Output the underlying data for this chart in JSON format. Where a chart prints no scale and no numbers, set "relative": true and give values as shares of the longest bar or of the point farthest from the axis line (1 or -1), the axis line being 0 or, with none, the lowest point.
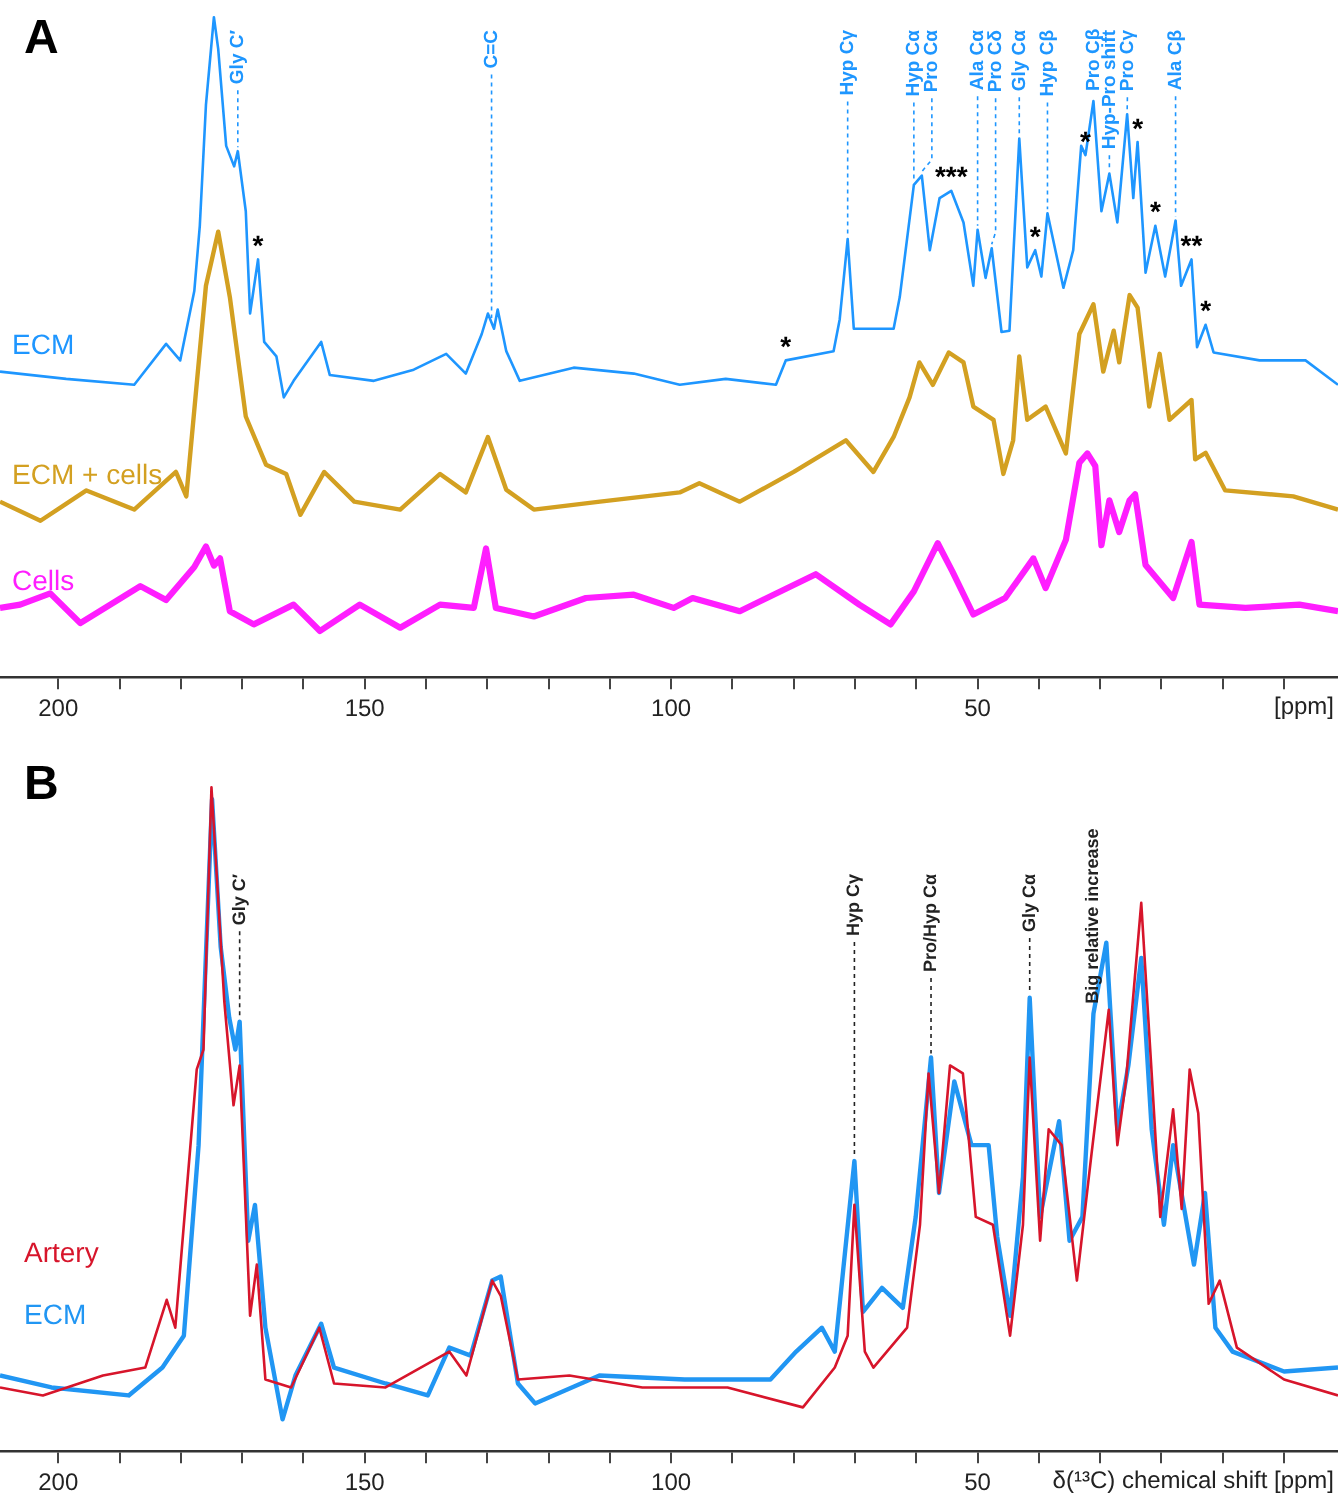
{
  "chart_data": [
    {
      "type": "line",
      "title": "A",
      "xlabel": "[ppm]",
      "relative": true,
      "marker": "none",
      "xlim": [
        209.5,
        -8.8
      ],
      "xticks": [
        200,
        {
          "value": 190,
          "label": null
        },
        {
          "value": 180,
          "label": null
        },
        {
          "value": 170,
          "label": null
        },
        {
          "value": 160,
          "label": null
        },
        150,
        {
          "value": 140,
          "label": null
        },
        {
          "value": 130,
          "label": null
        },
        {
          "value": 120,
          "label": null
        },
        {
          "value": 110,
          "label": null
        },
        100,
        {
          "value": 90,
          "label": null
        },
        {
          "value": 80,
          "label": null
        },
        {
          "value": 70,
          "label": null
        },
        {
          "value": 60,
          "label": null
        },
        50,
        {
          "value": 40,
          "label": null
        },
        {
          "value": 30,
          "label": null
        },
        {
          "value": 20,
          "label": null
        },
        {
          "value": 10,
          "label": null
        },
        {
          "value": 0,
          "label": null
        }
      ],
      "series": [
        {
          "name": "ECM",
          "color": "#1e96ff",
          "x": [
            209.5,
            198.7,
            187.6,
            182.4,
            180.1,
            177.8,
            176.9,
            175.9,
            174.6,
            173.9,
            172.6,
            171.3,
            170.7,
            169.4,
            168.7,
            167.4,
            166.4,
            164.4,
            163.2,
            161.6,
            157.1,
            155.7,
            148.5,
            142,
            136.7,
            133.5,
            130.9,
            129.9,
            128.9,
            128.3,
            126.9,
            124.7,
            115.9,
            106.1,
            98.6,
            91.1,
            82.9,
            81.3,
            73.5,
            72.5,
            71.2,
            70.2,
            63.7,
            62.7,
            60.4,
            59.1,
            57.8,
            56.2,
            54.3,
            52.3,
            50.7,
            50,
            48.7,
            47.7,
            46.1,
            44.8,
            43.2,
            41.9,
            40.6,
            39.6,
            38.6,
            36,
            34.4,
            33.1,
            32.4,
            31.1,
            29.8,
            28.5,
            27.2,
            25.6,
            24.6,
            23.9,
            22.6,
            21,
            19.4,
            17.7,
            16.8,
            15.1,
            14.2,
            12.8,
            11.5,
            4,
            -3.5,
            -8.8
          ],
          "values": [
            0.463,
            0.452,
            0.443,
            0.505,
            0.48,
            0.585,
            0.684,
            0.867,
            1,
            0.952,
            0.805,
            0.774,
            0.797,
            0.706,
            0.551,
            0.633,
            0.508,
            0.486,
            0.424,
            0.449,
            0.508,
            0.458,
            0.449,
            0.466,
            0.49,
            0.46,
            0.52,
            0.551,
            0.528,
            0.557,
            0.494,
            0.449,
            0.469,
            0.46,
            0.443,
            0.452,
            0.443,
            0.48,
            0.494,
            0.542,
            0.664,
            0.528,
            0.528,
            0.576,
            0.746,
            0.76,
            0.647,
            0.726,
            0.737,
            0.689,
            0.593,
            0.678,
            0.605,
            0.65,
            0.523,
            0.525,
            0.816,
            0.621,
            0.647,
            0.607,
            0.703,
            0.59,
            0.647,
            0.805,
            0.791,
            0.873,
            0.706,
            0.763,
            0.689,
            0.853,
            0.726,
            0.811,
            0.613,
            0.684,
            0.607,
            0.692,
            0.593,
            0.633,
            0.5,
            0.534,
            0.492,
            0.48,
            0.48,
            0.443
          ]
        },
        {
          "name": "ECM + cells",
          "color": "#d3a021",
          "x": [
            209.5,
            202.9,
            195.4,
            187.6,
            180.8,
            179.1,
            177.5,
            175.9,
            173.9,
            172,
            169.4,
            166.1,
            162.8,
            160.5,
            156.6,
            151.7,
            144.2,
            137.7,
            133.5,
            129.9,
            126.9,
            122.4,
            111.6,
            98.6,
            95.4,
            88.8,
            80,
            71.5,
            67,
            63.7,
            61.1,
            59.5,
            57.3,
            54.7,
            52.3,
            50.7,
            47.4,
            45.8,
            44.2,
            43.2,
            41.9,
            38.9,
            35.6,
            33.4,
            31.1,
            29.5,
            27.8,
            26.9,
            25.2,
            23.9,
            22,
            20.3,
            18.7,
            15.1,
            14.5,
            12.8,
            9.6,
            -1.5,
            -8.8
          ],
          "values": [
            0.266,
            0.237,
            0.283,
            0.254,
            0.311,
            0.274,
            0.435,
            0.593,
            0.675,
            0.576,
            0.395,
            0.322,
            0.308,
            0.246,
            0.311,
            0.266,
            0.254,
            0.308,
            0.28,
            0.364,
            0.284,
            0.254,
            0.266,
            0.28,
            0.294,
            0.266,
            0.311,
            0.359,
            0.311,
            0.364,
            0.424,
            0.477,
            0.443,
            0.492,
            0.477,
            0.41,
            0.39,
            0.308,
            0.359,
            0.486,
            0.39,
            0.41,
            0.339,
            0.52,
            0.565,
            0.463,
            0.525,
            0.477,
            0.579,
            0.56,
            0.41,
            0.49,
            0.39,
            0.42,
            0.33,
            0.34,
            0.283,
            0.274,
            0.254
          ]
        },
        {
          "name": "Cells",
          "color": "#ff1eff",
          "x": [
            209.5,
            206.2,
            201.3,
            196.4,
            186.6,
            182.4,
            177.8,
            175.9,
            174.6,
            173.6,
            172,
            168.1,
            161.6,
            157.3,
            150.8,
            144.2,
            137.7,
            132.2,
            130.2,
            128.6,
            122.4,
            113.9,
            106.1,
            99.6,
            96.5,
            88.8,
            76.4,
            69.3,
            64.2,
            60.4,
            56.5,
            54.1,
            50.7,
            45.5,
            40.9,
            38.9,
            35.6,
            33.4,
            32.1,
            30.8,
            29.8,
            28.5,
            26.9,
            25.2,
            24.3,
            22.6,
            18.1,
            15.1,
            13.8,
            6.3,
            -2.5,
            -8.8
          ],
          "values": [
            0.105,
            0.11,
            0.127,
            0.082,
            0.138,
            0.117,
            0.167,
            0.198,
            0.169,
            0.18,
            0.1,
            0.08,
            0.11,
            0.07,
            0.11,
            0.075,
            0.11,
            0.105,
            0.195,
            0.105,
            0.092,
            0.12,
            0.125,
            0.105,
            0.12,
            0.1,
            0.156,
            0.11,
            0.08,
            0.13,
            0.203,
            0.16,
            0.095,
            0.12,
            0.18,
            0.135,
            0.208,
            0.325,
            0.339,
            0.32,
            0.2,
            0.268,
            0.22,
            0.268,
            0.277,
            0.17,
            0.12,
            0.205,
            0.11,
            0.105,
            0.11,
            0.1
          ]
        }
      ],
      "annotations": [
        {
          "text": "Gly C′",
          "x": 170.7,
          "y": 0.797
        },
        {
          "text": "C=C",
          "x": 129.3,
          "y": 0.538
        },
        {
          "text": "Hyp Cγ",
          "x": 71.2,
          "y": 0.664
        },
        {
          "text": "Hyp Cα",
          "x": 60.4,
          "y": 0.746
        },
        {
          "text": "Pro Cα",
          "x": 59.1,
          "y": 0.76
        },
        {
          "text": "Ala Cα",
          "x": 50,
          "y": 0.678
        },
        {
          "text": "Pro Cδ",
          "x": 47.7,
          "y": 0.65
        },
        {
          "text": "Gly Cα",
          "x": 43.2,
          "y": 0.816
        },
        {
          "text": "Hyp Cβ",
          "x": 38.6,
          "y": 0.703
        },
        {
          "text": "Pro Cβ",
          "x": 31.1,
          "y": 0.873
        },
        {
          "text": "Hyp-Pro shift",
          "x": 28.5,
          "y": 0.763
        },
        {
          "text": "Pro Cγ",
          "x": 25.6,
          "y": 0.853
        },
        {
          "text": "Ala Cβ",
          "x": 17.7,
          "y": 0.692
        },
        {
          "text": "*",
          "x": 167.4,
          "y": 0.633
        },
        {
          "text": "*",
          "x": 81.3,
          "y": 0.48
        },
        {
          "text": "***",
          "x": 54.3,
          "y": 0.737
        },
        {
          "text": "*",
          "x": 40.6,
          "y": 0.647
        },
        {
          "text": "*",
          "x": 32.4,
          "y": 0.791
        },
        {
          "text": "*",
          "x": 23.9,
          "y": 0.811
        },
        {
          "text": "*",
          "x": 21,
          "y": 0.684
        },
        {
          "text": "**",
          "x": 15.1,
          "y": 0.633
        },
        {
          "text": "*",
          "x": 12.8,
          "y": 0.534
        }
      ]
    },
    {
      "type": "line",
      "title": "B",
      "xlabel": "δ(¹³C) chemical shift [ppm]",
      "relative": true,
      "marker": "none",
      "legend": "left",
      "xlim": [
        209.5,
        -8.8
      ],
      "xticks": [
        200,
        {
          "value": 190,
          "label": null
        },
        {
          "value": 180,
          "label": null
        },
        {
          "value": 170,
          "label": null
        },
        {
          "value": 160,
          "label": null
        },
        150,
        {
          "value": 140,
          "label": null
        },
        {
          "value": 130,
          "label": null
        },
        {
          "value": 120,
          "label": null
        },
        {
          "value": 110,
          "label": null
        },
        100,
        {
          "value": 90,
          "label": null
        },
        {
          "value": 80,
          "label": null
        },
        {
          "value": 70,
          "label": null
        },
        {
          "value": 60,
          "label": null
        },
        50,
        {
          "value": 40,
          "label": null
        },
        {
          "value": 30,
          "label": null
        },
        {
          "value": 20,
          "label": null
        },
        {
          "value": 10,
          "label": null
        },
        {
          "value": 0,
          "label": null
        }
      ],
      "series": [
        {
          "name": "Artery",
          "color": "#d7152b",
          "x": [
            209.5,
            202.5,
            192.7,
            185.8,
            182.3,
            180.9,
            177.4,
            176.3,
            175,
            172.9,
            171.4,
            170.4,
            168.7,
            167.6,
            166.2,
            162,
            157.4,
            155,
            146.6,
            136.2,
            133.4,
            129.2,
            127.8,
            125,
            116.6,
            104.7,
            90.8,
            78.5,
            73.3,
            71.2,
            70.1,
            68.4,
            67,
            61.5,
            59.4,
            58,
            56.3,
            54.5,
            52.4,
            50.3,
            47.5,
            44.7,
            42.6,
            41.5,
            39.8,
            38.4,
            36.3,
            33.8,
            31.4,
            28.6,
            27.2,
            25.8,
            23.3,
            21.6,
            20.2,
            18.1,
            16.7,
            15.4,
            14,
            12.3,
            10.5,
            7.7,
            0,
            -8.8
          ],
          "values": [
            0.096,
            0.084,
            0.114,
            0.126,
            0.228,
            0.186,
            0.575,
            0.605,
            1,
            0.677,
            0.521,
            0.581,
            0.204,
            0.281,
            0.108,
            0.096,
            0.186,
            0.102,
            0.096,
            0.15,
            0.114,
            0.257,
            0.234,
            0.108,
            0.114,
            0.096,
            0.096,
            0.066,
            0.126,
            0.174,
            0.371,
            0.15,
            0.126,
            0.186,
            0.341,
            0.569,
            0.389,
            0.581,
            0.569,
            0.353,
            0.341,
            0.174,
            0.341,
            0.593,
            0.317,
            0.485,
            0.461,
            0.257,
            0.449,
            0.665,
            0.461,
            0.557,
            0.826,
            0.569,
            0.353,
            0.515,
            0.365,
            0.575,
            0.509,
            0.222,
            0.257,
            0.156,
            0.108,
            0.084
          ]
        },
        {
          "name": "ECM",
          "color": "#2196f3",
          "x": [
            209.5,
            201.1,
            188.5,
            183,
            179.5,
            177.1,
            176,
            174.9,
            173.5,
            172.1,
            171.1,
            170.4,
            169,
            167.9,
            166.2,
            163.4,
            161.3,
            157.1,
            155,
            146.6,
            139.7,
            136.2,
            132.7,
            129.2,
            127.8,
            125,
            122.2,
            111.7,
            97.8,
            83.8,
            79.6,
            75.4,
            73.3,
            70.1,
            68.7,
            65.6,
            62.2,
            60.1,
            57.6,
            56.3,
            53.8,
            51,
            48.2,
            46.8,
            44.7,
            42.6,
            41.5,
            39.8,
            36.7,
            35,
            32.9,
            31.1,
            29,
            27.2,
            25.4,
            23.3,
            21.6,
            19.6,
            18.1,
            14.7,
            12.9,
            11.2,
            8.4,
            0,
            -8.8
          ],
          "values": [
            0.114,
            0.096,
            0.084,
            0.126,
            0.174,
            0.461,
            0.725,
            0.982,
            0.76,
            0.653,
            0.605,
            0.647,
            0.317,
            0.371,
            0.186,
            0.048,
            0.114,
            0.192,
            0.126,
            0.102,
            0.084,
            0.156,
            0.144,
            0.257,
            0.263,
            0.102,
            0.072,
            0.114,
            0.108,
            0.108,
            0.15,
            0.186,
            0.15,
            0.437,
            0.21,
            0.246,
            0.216,
            0.353,
            0.593,
            0.389,
            0.557,
            0.461,
            0.461,
            0.323,
            0.204,
            0.413,
            0.683,
            0.353,
            0.497,
            0.317,
            0.353,
            0.659,
            0.766,
            0.485,
            0.581,
            0.743,
            0.485,
            0.341,
            0.461,
            0.281,
            0.389,
            0.186,
            0.15,
            0.12,
            0.126
          ]
        }
      ],
      "annotations": [
        {
          "text": "Gly C′",
          "x": 170.4,
          "y": 0.647
        },
        {
          "text": "Hyp Cγ",
          "x": 70.1,
          "y": 0.437
        },
        {
          "text": "Pro/Hyp Cα",
          "x": 57.6,
          "y": 0.593
        },
        {
          "text": "Gly Cα",
          "x": 41.5,
          "y": 0.683
        },
        {
          "text": "Big relative increase",
          "x": 31.1,
          "y": 0.659
        }
      ]
    }
  ]
}
